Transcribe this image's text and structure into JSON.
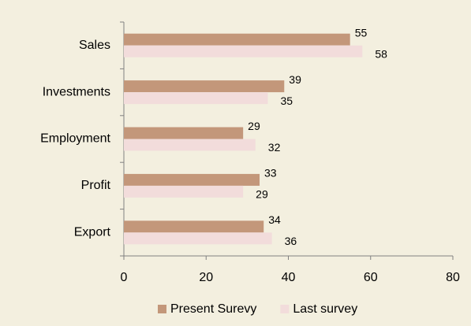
{
  "chart_data": {
    "type": "barh",
    "categories": [
      "Sales",
      "Investments",
      "Employment",
      "Profit",
      "Export"
    ],
    "series": [
      {
        "name": "Present Surevy",
        "color": "#c3977a",
        "values": [
          55,
          39,
          29,
          33,
          34
        ]
      },
      {
        "name": "Last survey",
        "color": "#f2dcdb",
        "values": [
          58,
          35,
          32,
          29,
          36
        ]
      }
    ],
    "xlim": [
      0,
      80
    ],
    "xticks": [
      0,
      20,
      40,
      60,
      80
    ],
    "legend": "bottom"
  }
}
